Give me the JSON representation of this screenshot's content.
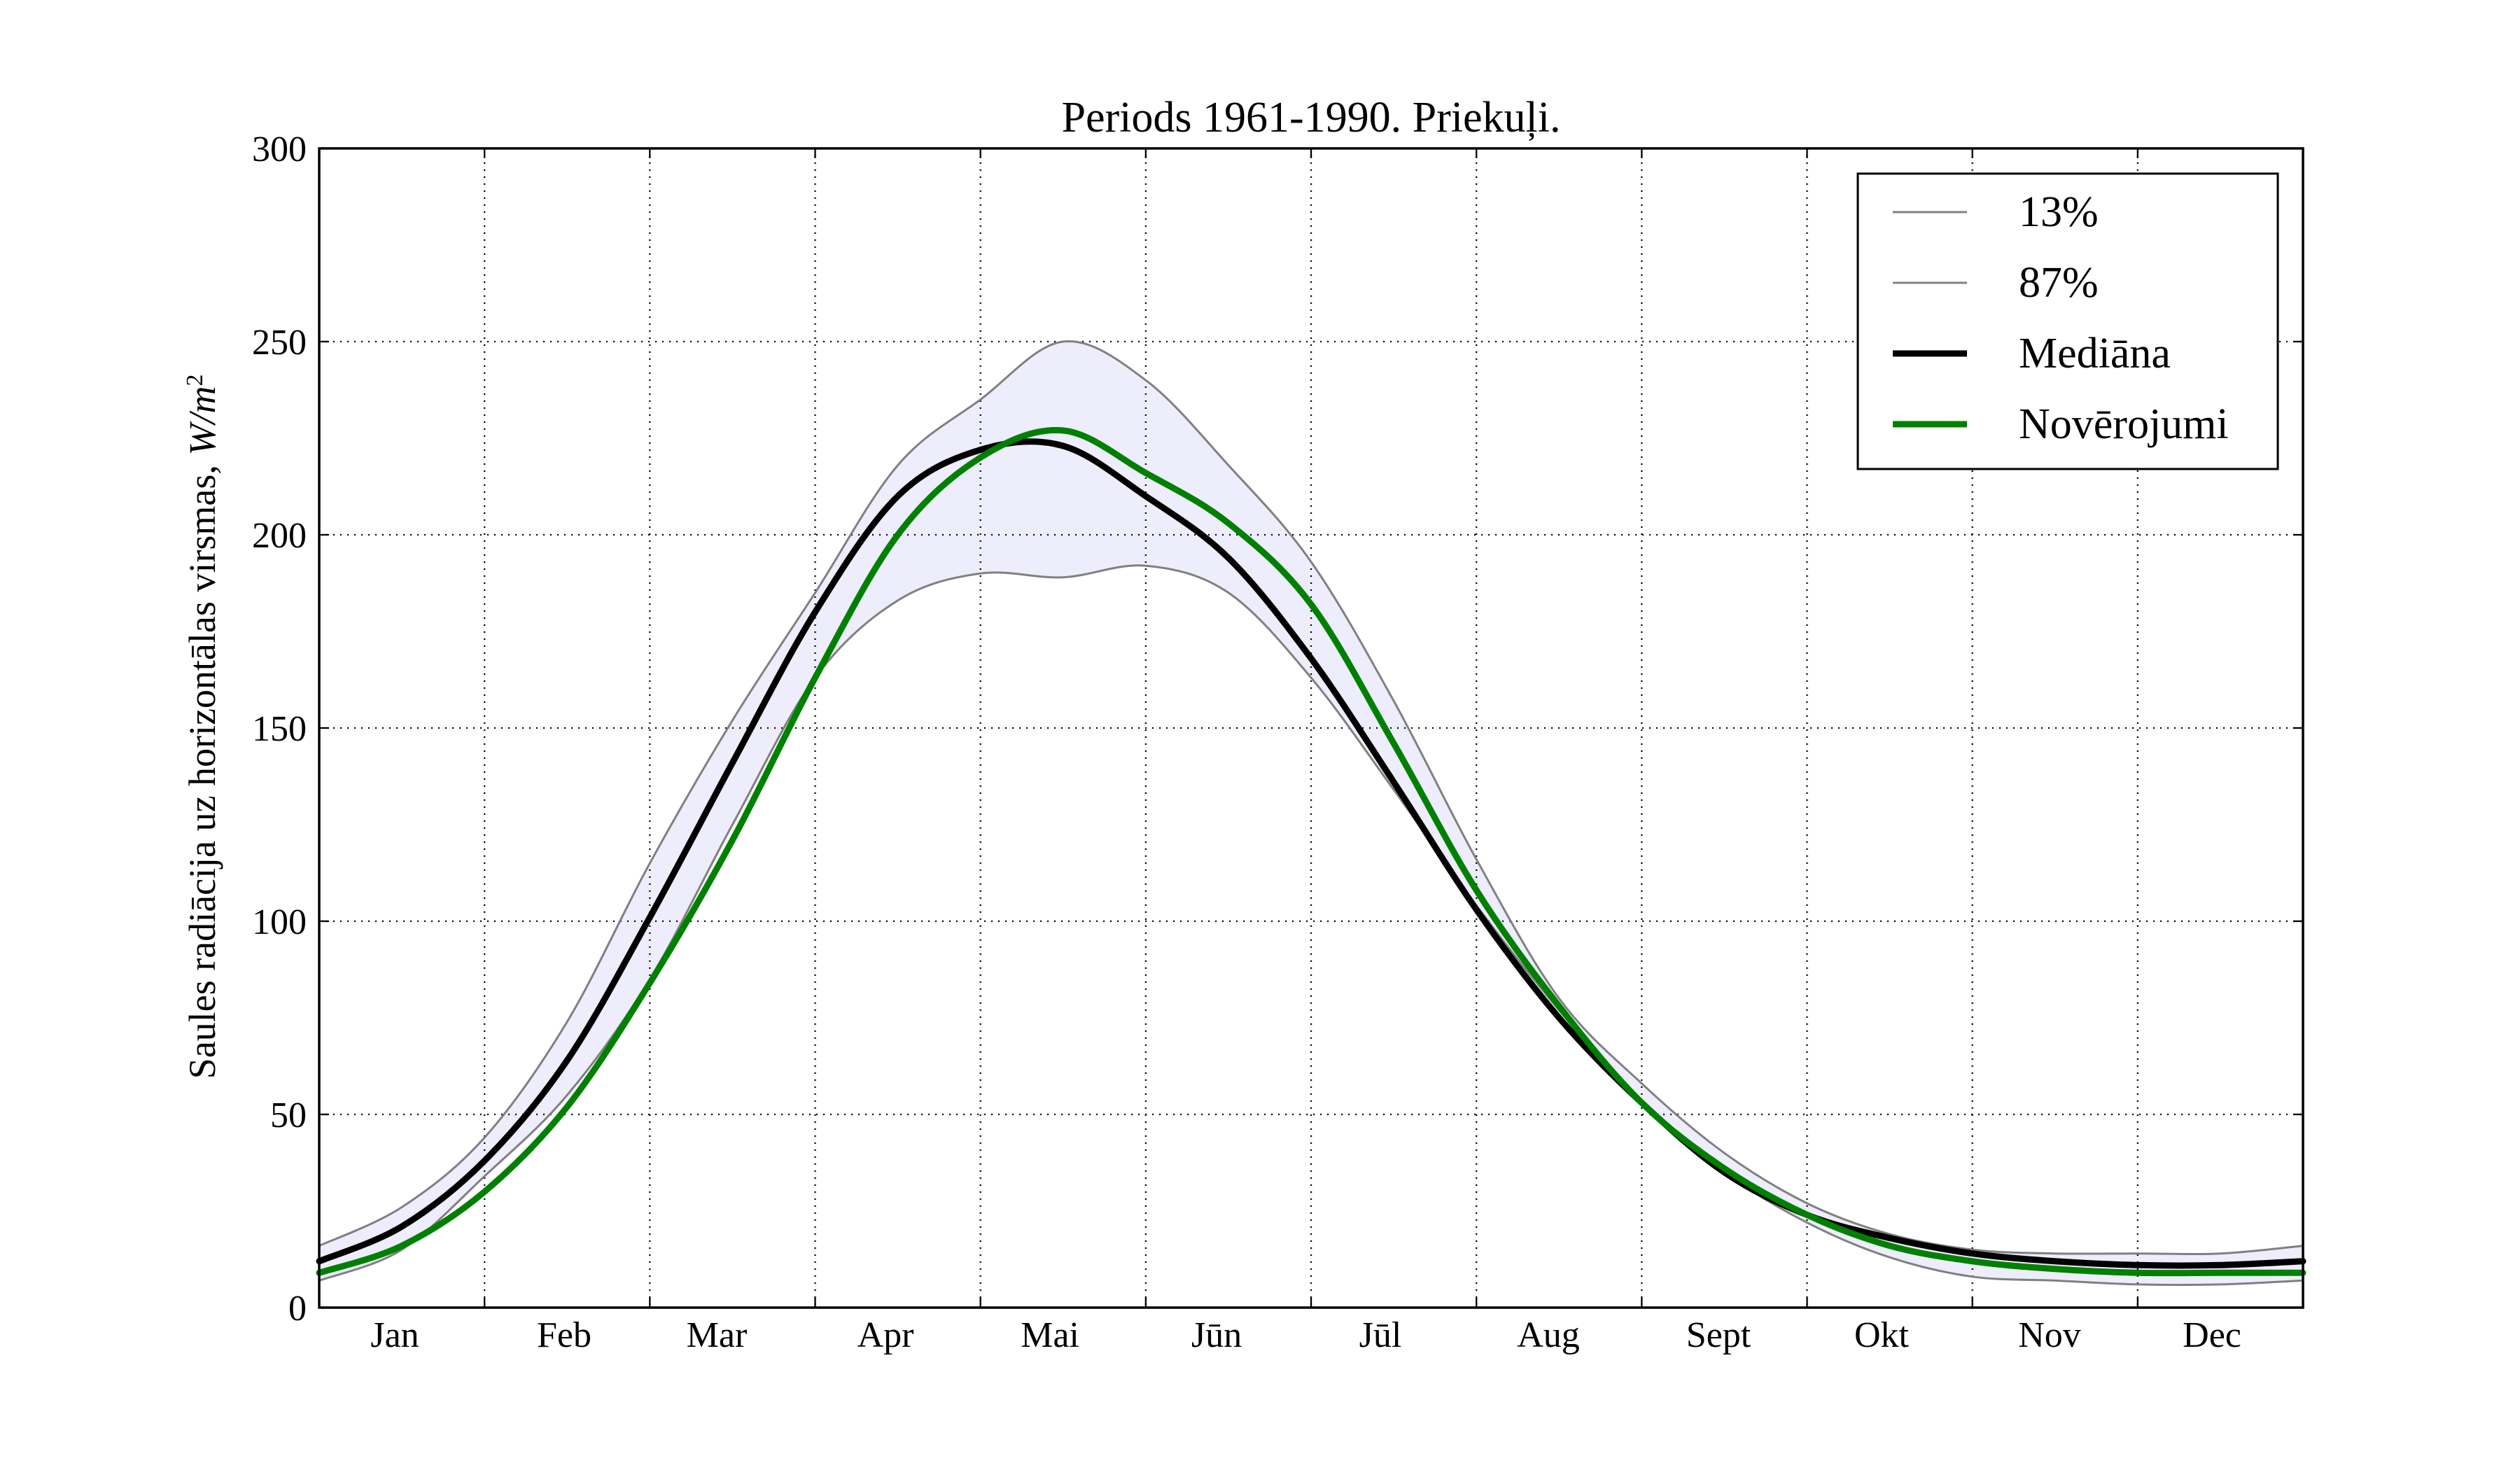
{
  "chart_data": {
    "type": "line",
    "title": "Periods 1961-1990. Priekuļi.",
    "ylabel_text": "Saules radiācija uz horizontālas virsmas, ",
    "ylabel_units": "W/m",
    "ylabel_exponent": "2",
    "xlabel": "",
    "ylim": [
      0,
      300
    ],
    "y_ticks": [
      "0",
      "50",
      "100",
      "150",
      "200",
      "250",
      "300"
    ],
    "months": [
      "Jan",
      "Feb",
      "Mar",
      "Apr",
      "Mai",
      "Jūn",
      "Jūl",
      "Aug",
      "Sept",
      "Okt",
      "Nov",
      "Dec"
    ],
    "grid": true,
    "legend_position": "top-right",
    "band_fill_color": "#ededfb",
    "x": [
      0,
      0.5,
      1,
      1.5,
      2,
      2.5,
      3,
      3.5,
      4,
      4.5,
      5,
      5.5,
      6,
      6.5,
      7,
      7.5,
      8,
      8.5,
      9,
      9.5,
      10,
      10.5,
      11,
      11.5,
      12
    ],
    "series": [
      {
        "name": "13%",
        "color": "#808080",
        "width": 3,
        "values": [
          7,
          15,
          34,
          55,
          85,
          125,
          163,
          183,
          190,
          189,
          192,
          185,
          163,
          134,
          104,
          77,
          53,
          35,
          22,
          13,
          8,
          7,
          6,
          6,
          7
        ]
      },
      {
        "name": "87%",
        "color": "#808080",
        "width": 3,
        "values": [
          16,
          26,
          44,
          74,
          115,
          152,
          185,
          218,
          235,
          250,
          240,
          218,
          193,
          157,
          116,
          80,
          58,
          40,
          27,
          19,
          15,
          14,
          14,
          14,
          16
        ]
      },
      {
        "name": "Mediāna",
        "color": "#000000",
        "width": 9,
        "values": [
          12,
          21,
          38,
          64,
          101,
          141,
          180,
          210,
          222,
          223,
          210,
          194,
          168,
          136,
          103,
          75,
          53,
          35,
          24,
          18,
          14,
          12,
          11,
          11,
          12
        ]
      },
      {
        "name": "Novērojumi",
        "color": "#008000",
        "width": 9,
        "values": [
          9,
          16,
          30,
          52,
          84,
          121,
          163,
          200,
          220,
          227,
          216,
          203,
          182,
          146,
          108,
          78,
          53,
          36,
          24,
          16,
          12,
          10,
          9,
          9,
          9
        ]
      }
    ]
  }
}
